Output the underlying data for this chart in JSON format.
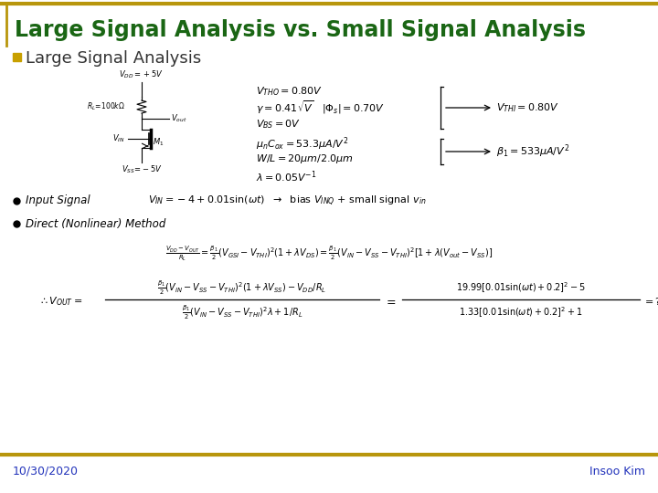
{
  "title": "Large Signal Analysis vs. Small Signal Analysis",
  "title_color": "#1a6614",
  "top_border_color": "#b8960c",
  "section_header": "Large Signal Analysis",
  "section_bullet_color": "#c8a000",
  "section_header_color": "#333333",
  "footer_left": "10/30/2020",
  "footer_right": "Insoo Kim",
  "footer_color": "#2233bb",
  "bg_color": "#ffffff",
  "title_fontsize": 17,
  "section_fontsize": 13
}
